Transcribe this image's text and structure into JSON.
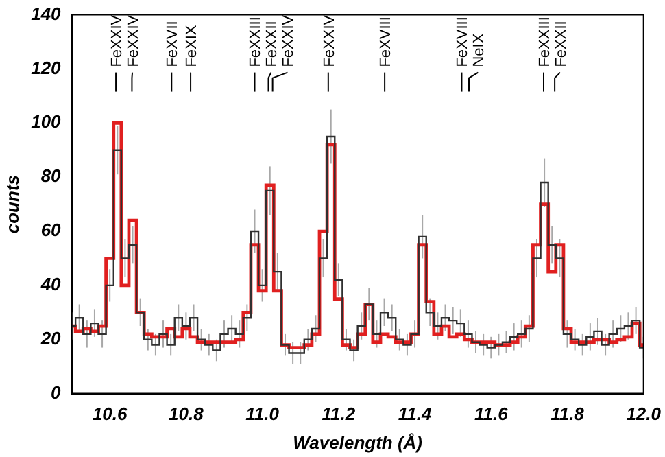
{
  "chart_data": {
    "type": "step",
    "xlabel": "Wavelength (Å)",
    "ylabel": "counts",
    "xlim": [
      10.5,
      12.0
    ],
    "xticks": [
      10.6,
      10.8,
      {
        "value": 11.0,
        "label": "11.0"
      },
      11.2,
      11.4,
      11.6,
      11.8,
      {
        "value": 12.0,
        "label": "12.0"
      }
    ],
    "ylim": [
      0,
      140
    ],
    "yticks": [
      0,
      20,
      40,
      60,
      80,
      100,
      120,
      140
    ],
    "x": [
      10.5,
      10.52,
      10.54,
      10.56,
      10.58,
      10.6,
      10.62,
      10.64,
      10.66,
      10.68,
      10.7,
      10.72,
      10.74,
      10.76,
      10.78,
      10.8,
      10.82,
      10.84,
      10.86,
      10.88,
      10.9,
      10.92,
      10.94,
      10.96,
      10.98,
      11.0,
      11.02,
      11.04,
      11.06,
      11.08,
      11.1,
      11.12,
      11.14,
      11.16,
      11.18,
      11.2,
      11.22,
      11.24,
      11.26,
      11.28,
      11.3,
      11.32,
      11.34,
      11.36,
      11.38,
      11.4,
      11.42,
      11.44,
      11.46,
      11.48,
      11.5,
      11.52,
      11.54,
      11.56,
      11.58,
      11.6,
      11.62,
      11.64,
      11.66,
      11.68,
      11.7,
      11.72,
      11.74,
      11.76,
      11.78,
      11.8,
      11.82,
      11.84,
      11.86,
      11.88,
      11.9,
      11.92,
      11.94,
      11.96,
      11.98,
      12.0
    ],
    "series": [
      {
        "color": "#303030",
        "values": [
          25,
          28,
          22,
          26,
          22,
          40,
          90,
          50,
          55,
          30,
          20,
          18,
          22,
          18,
          28,
          25,
          28,
          20,
          18,
          16,
          22,
          24,
          22,
          28,
          60,
          40,
          75,
          45,
          18,
          15,
          15,
          20,
          24,
          50,
          95,
          42,
          20,
          16,
          25,
          33,
          22,
          30,
          28,
          20,
          18,
          22,
          58,
          30,
          25,
          28,
          27,
          26,
          22,
          19,
          18,
          17,
          18,
          19,
          21,
          22,
          24,
          50,
          78,
          55,
          50,
          22,
          20,
          18,
          21,
          23,
          18,
          22,
          24,
          25,
          27,
          17
        ],
        "errors": [
          5,
          5,
          5,
          5,
          5,
          6,
          9,
          7,
          7,
          5,
          4,
          4,
          5,
          4,
          5,
          5,
          5,
          4,
          4,
          4,
          5,
          5,
          5,
          5,
          8,
          6,
          9,
          7,
          4,
          4,
          4,
          4,
          5,
          7,
          10,
          6,
          4,
          4,
          5,
          6,
          5,
          5,
          5,
          4,
          4,
          5,
          8,
          5,
          5,
          5,
          5,
          5,
          5,
          4,
          4,
          4,
          4,
          4,
          5,
          5,
          5,
          7,
          9,
          7,
          7,
          5,
          4,
          4,
          5,
          5,
          4,
          5,
          5,
          5,
          5,
          4
        ]
      },
      {
        "color": "#e02020",
        "values": [
          25,
          23,
          24,
          23,
          25,
          50,
          100,
          40,
          64,
          30,
          22,
          21,
          21,
          24,
          21,
          24,
          21,
          19,
          19,
          19,
          19,
          19,
          20,
          30,
          55,
          38,
          77,
          38,
          18,
          17,
          17,
          18,
          22,
          60,
          92,
          35,
          18,
          17,
          22,
          33,
          19,
          22,
          21,
          19,
          19,
          22,
          55,
          34,
          22,
          25,
          21,
          22,
          20,
          19,
          19,
          19,
          18,
          18,
          19,
          21,
          25,
          55,
          70,
          45,
          55,
          24,
          19,
          19,
          19,
          20,
          20,
          19,
          20,
          21,
          26,
          18
        ]
      }
    ],
    "ref_lines": [
      {
        "axis": "x",
        "value": 10.616,
        "label": "FeXXIV"
      },
      {
        "axis": "x",
        "value": 10.658,
        "label": "FeXXIV"
      },
      {
        "axis": "x",
        "value": 10.762,
        "label": "FeXVII"
      },
      {
        "axis": "x",
        "value": 10.812,
        "label": "FeXIX"
      },
      {
        "axis": "x",
        "value": 10.98,
        "label": "FeXXIII"
      },
      {
        "axis": "x",
        "value": 11.016,
        "label": "FeXXII"
      },
      {
        "axis": "x",
        "value": 11.027,
        "label": "FeXXIV"
      },
      {
        "axis": "x",
        "value": 11.173,
        "label": "FeXXIV"
      },
      {
        "axis": "x",
        "value": 11.321,
        "label": "FeXVIII"
      },
      {
        "axis": "x",
        "value": 11.523,
        "label": "FeXVIII"
      },
      {
        "axis": "x",
        "value": 11.542,
        "label": "NeIX"
      },
      {
        "axis": "x",
        "value": 11.738,
        "label": "FeXXIII"
      },
      {
        "axis": "x",
        "value": 11.767,
        "label": "FeXXII"
      }
    ]
  }
}
